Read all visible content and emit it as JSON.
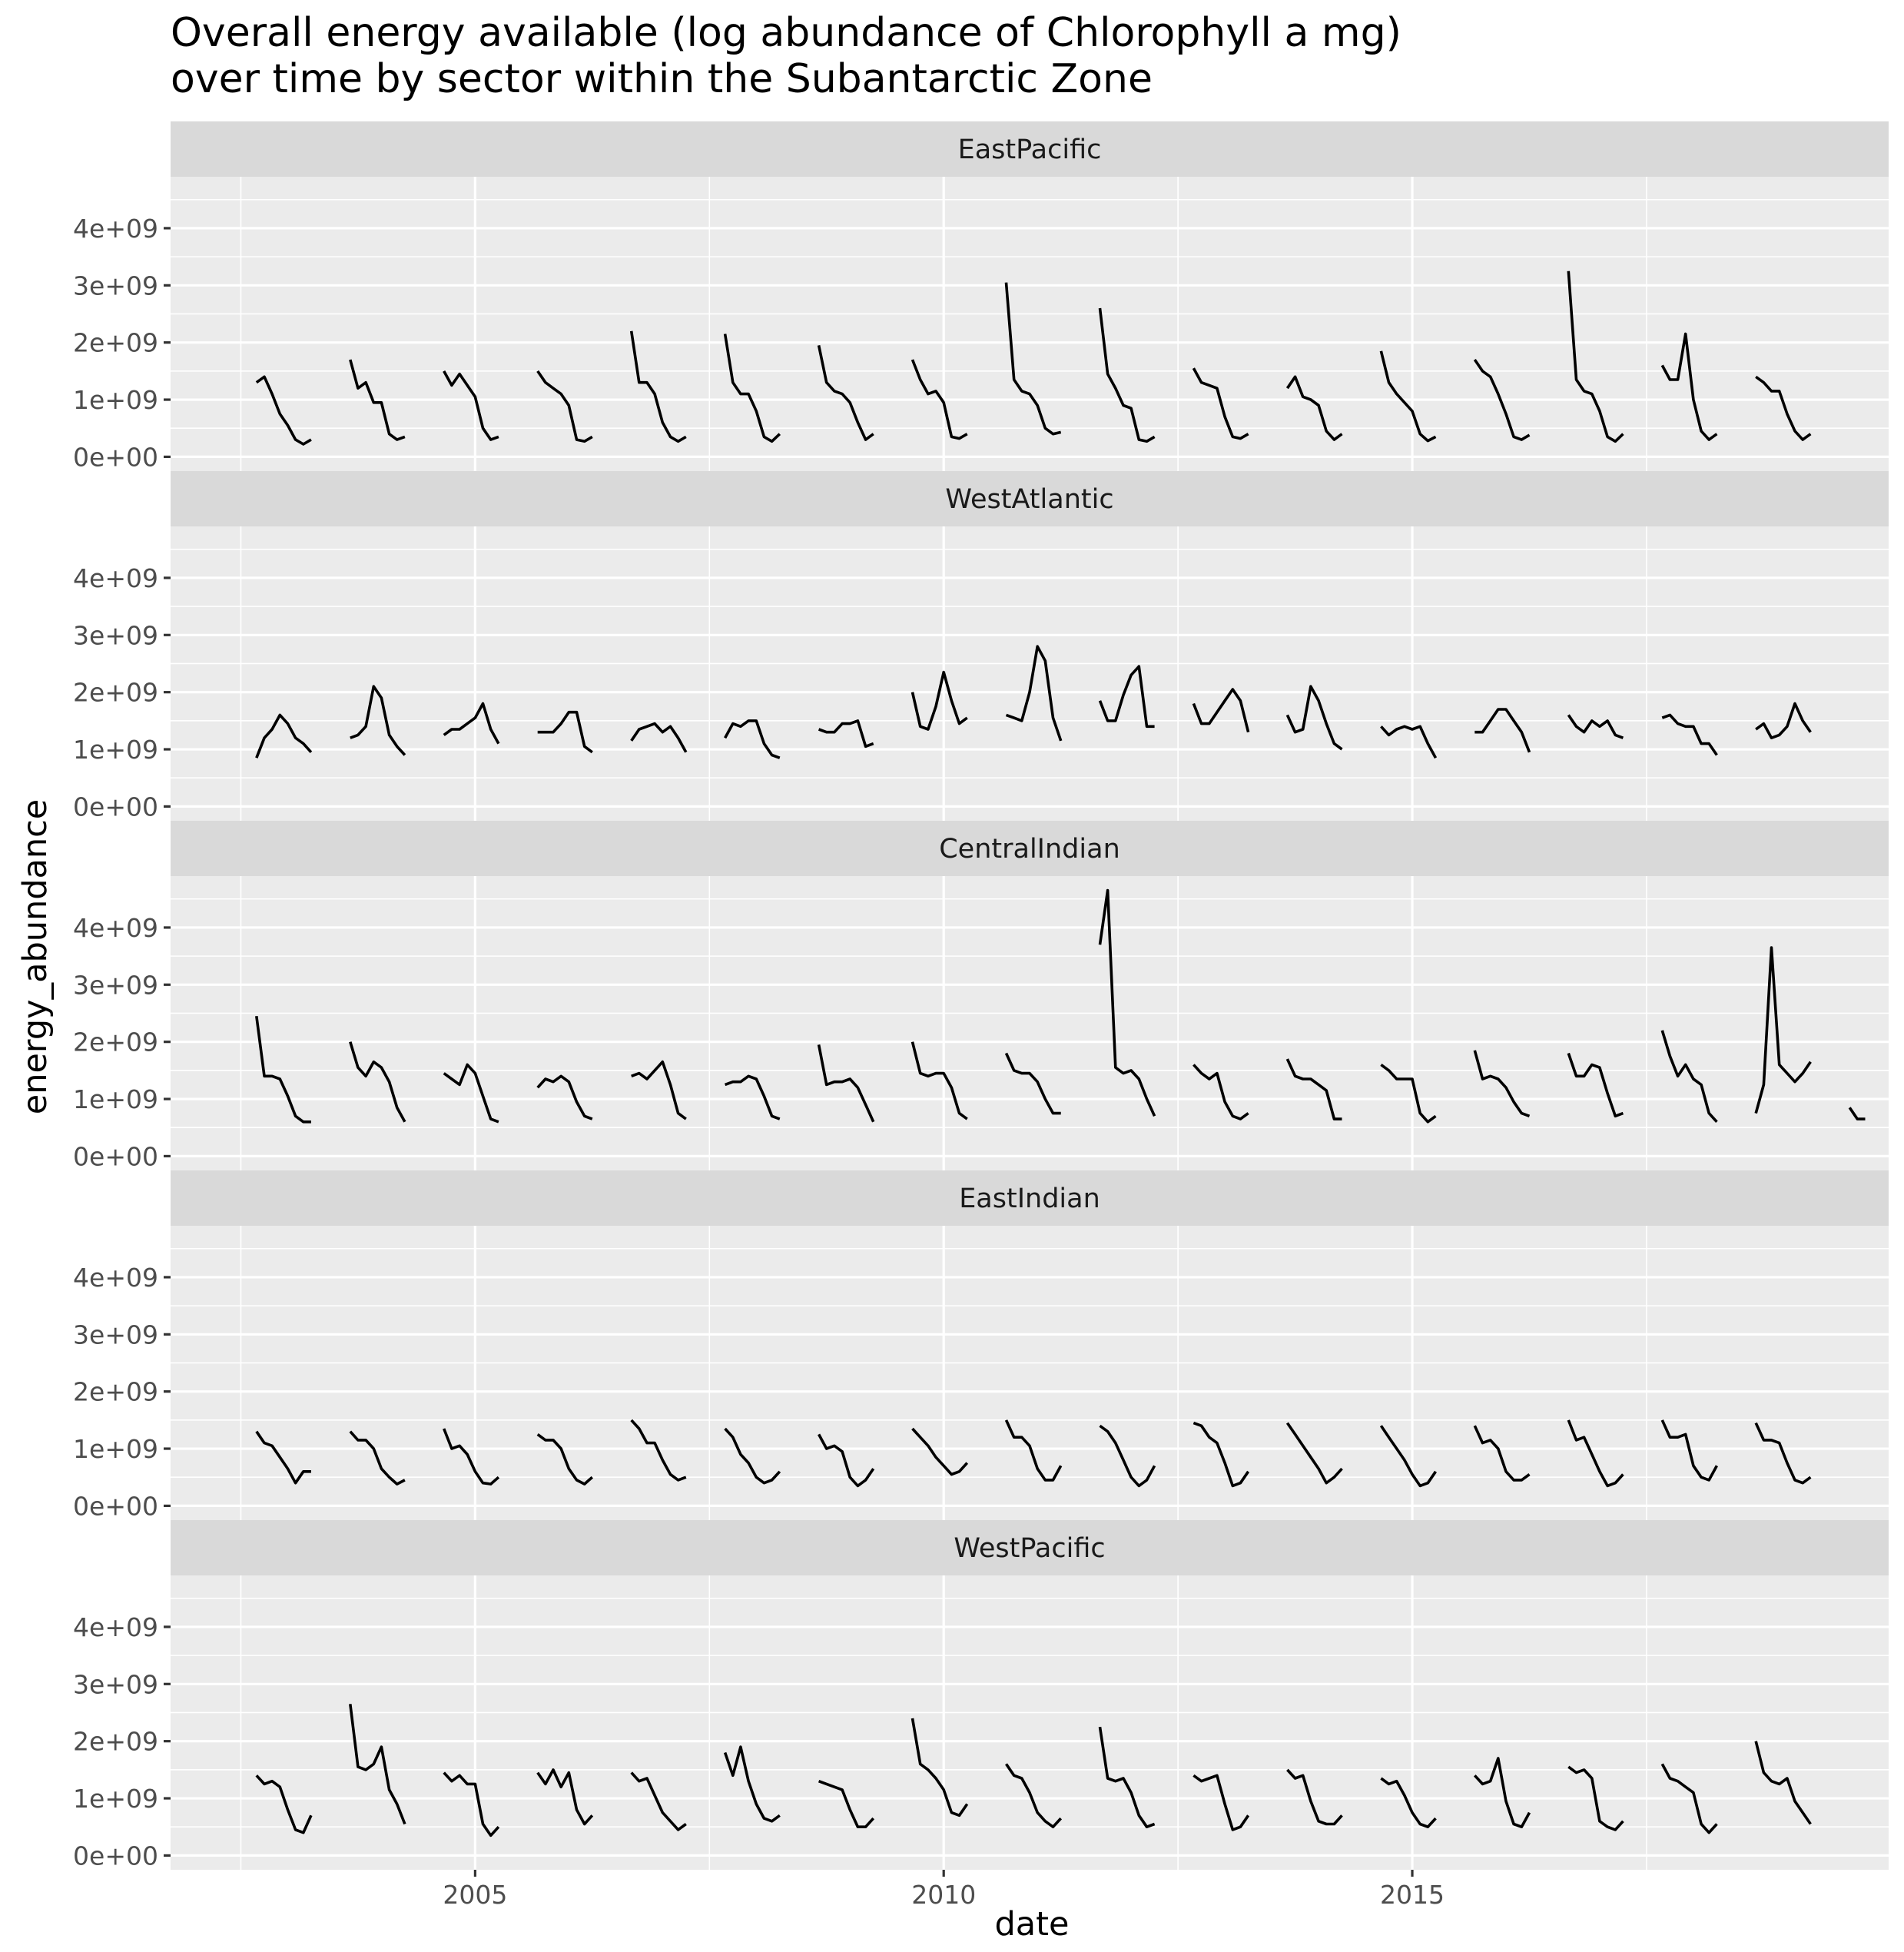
{
  "chart_data": {
    "type": "line",
    "title_lines": [
      " Overall energy available (log abundance of Chlorophyll a mg)",
      "over time by sector within the Subantarctic Zone"
    ],
    "xlabel": "date",
    "ylabel": "energy_abundance",
    "x_ticks": [
      "2005",
      "2010",
      "2015"
    ],
    "x_range": [
      "2001-10-01",
      "2020-02-01"
    ],
    "y_ticks": [
      "0e+00",
      "1e+09",
      "2e+09",
      "3e+09",
      "4e+09"
    ],
    "y_tick_values": [
      0,
      1000000000,
      2000000000,
      3000000000,
      4000000000
    ],
    "ylim": [
      -250000000,
      4900000000
    ],
    "season_months": [
      "Sep",
      "Oct",
      "Nov",
      "Dec",
      "Jan",
      "Feb",
      "Mar",
      "Apr"
    ],
    "seasons_start_year": 2002,
    "grid": true,
    "facets": [
      {
        "label": "EastPacific",
        "seasons_e9": [
          [
            1.3,
            1.4,
            1.1,
            0.75,
            0.55,
            0.3,
            0.22,
            0.3,
            0.5
          ],
          [
            1.7,
            1.2,
            1.3,
            0.95,
            0.95,
            0.4,
            0.3,
            0.35,
            0.5
          ],
          [
            1.5,
            1.25,
            1.45,
            1.25,
            1.05,
            0.5,
            0.3,
            0.35,
            0.6
          ],
          [
            1.5,
            1.3,
            1.2,
            1.1,
            0.9,
            0.3,
            0.27,
            0.35,
            0.55
          ],
          [
            2.2,
            1.3,
            1.3,
            1.1,
            0.6,
            0.35,
            0.27,
            0.35,
            0.6
          ],
          [
            2.15,
            1.3,
            1.1,
            1.1,
            0.8,
            0.35,
            0.27,
            0.4,
            0.55
          ],
          [
            1.95,
            1.3,
            1.15,
            1.1,
            0.95,
            0.6,
            0.3,
            0.4,
            0.62
          ],
          [
            1.7,
            1.35,
            1.1,
            1.15,
            0.95,
            0.35,
            0.32,
            0.4,
            0.75
          ],
          [
            3.05,
            1.35,
            1.15,
            1.1,
            0.9,
            0.5,
            0.4,
            0.43,
            0.45
          ],
          [
            2.6,
            1.45,
            1.2,
            0.9,
            0.85,
            0.3,
            0.27,
            0.35,
            0.6
          ],
          [
            1.55,
            1.3,
            1.25,
            1.2,
            0.7,
            0.35,
            0.32,
            0.4,
            0.68
          ],
          [
            1.2,
            1.4,
            1.05,
            1.0,
            0.9,
            0.45,
            0.3,
            0.4,
            0.75
          ],
          [
            1.85,
            1.3,
            1.1,
            0.95,
            0.8,
            0.4,
            0.28,
            0.35,
            0.45
          ],
          [
            1.7,
            1.5,
            1.4,
            1.1,
            0.75,
            0.35,
            0.3,
            0.38,
            0.6
          ],
          [
            3.25,
            1.35,
            1.15,
            1.1,
            0.8,
            0.35,
            0.27,
            0.4,
            0.68
          ],
          [
            1.6,
            1.35,
            1.35,
            2.15,
            1.0,
            0.45,
            0.3,
            0.4,
            0.52
          ],
          [
            1.4,
            1.3,
            1.15,
            1.15,
            0.75,
            0.45,
            0.3,
            0.4,
            null
          ]
        ]
      },
      {
        "label": "WestAtlantic",
        "seasons_e9": [
          [
            0.85,
            1.2,
            1.35,
            1.6,
            1.45,
            1.2,
            1.1,
            0.95,
            0.8
          ],
          [
            1.2,
            1.25,
            1.4,
            2.1,
            1.9,
            1.25,
            1.05,
            0.9,
            1.05
          ],
          [
            1.25,
            1.35,
            1.35,
            1.45,
            1.55,
            1.8,
            1.35,
            1.1,
            1.05
          ],
          [
            1.3,
            1.3,
            1.3,
            1.45,
            1.65,
            1.65,
            1.05,
            0.95,
            1.05
          ],
          [
            1.15,
            1.35,
            1.4,
            1.45,
            1.3,
            1.4,
            1.2,
            0.95,
            1.0
          ],
          [
            1.2,
            1.45,
            1.4,
            1.5,
            1.5,
            1.1,
            0.9,
            0.85,
            1.15
          ],
          [
            1.35,
            1.3,
            1.3,
            1.45,
            1.45,
            1.5,
            1.05,
            1.1,
            1.6
          ],
          [
            2.0,
            1.4,
            1.35,
            1.75,
            2.35,
            1.85,
            1.45,
            1.55,
            1.6
          ],
          [
            1.6,
            1.55,
            1.5,
            2.0,
            2.8,
            2.55,
            1.55,
            1.15,
            1.7
          ],
          [
            1.85,
            1.5,
            1.5,
            1.95,
            2.3,
            2.45,
            1.4,
            1.4,
            1.15
          ],
          [
            1.8,
            1.45,
            1.45,
            1.65,
            1.85,
            2.05,
            1.85,
            1.3,
            1.15
          ],
          [
            1.6,
            1.3,
            1.35,
            2.1,
            1.85,
            1.45,
            1.1,
            1.0,
            0.95
          ],
          [
            1.4,
            1.25,
            1.35,
            1.4,
            1.35,
            1.4,
            1.1,
            0.85,
            1.2
          ],
          [
            1.3,
            1.3,
            1.5,
            1.7,
            1.7,
            1.5,
            1.3,
            0.95,
            1.15
          ],
          [
            1.6,
            1.4,
            1.3,
            1.5,
            1.4,
            1.5,
            1.25,
            1.2,
            1.2
          ],
          [
            1.55,
            1.6,
            1.45,
            1.4,
            1.4,
            1.1,
            1.1,
            0.9,
            1.3
          ],
          [
            1.35,
            1.45,
            1.2,
            1.25,
            1.4,
            1.8,
            1.5,
            1.3,
            null
          ]
        ]
      },
      {
        "label": "CentralIndian",
        "seasons_e9": [
          [
            2.45,
            1.4,
            1.4,
            1.35,
            1.05,
            0.7,
            0.6,
            0.6,
            0.95
          ],
          [
            2.0,
            1.55,
            1.4,
            1.65,
            1.55,
            1.3,
            0.85,
            0.6,
            1.1
          ],
          [
            1.45,
            1.35,
            1.25,
            1.6,
            1.45,
            1.05,
            0.65,
            0.6,
            1.0
          ],
          [
            1.2,
            1.35,
            1.3,
            1.4,
            1.3,
            0.95,
            0.7,
            0.65,
            1.15
          ],
          [
            1.4,
            1.45,
            1.35,
            1.5,
            1.65,
            1.25,
            0.75,
            0.65,
            0.95
          ],
          [
            1.25,
            1.3,
            1.3,
            1.4,
            1.35,
            1.05,
            0.7,
            0.65,
            0.85
          ],
          [
            1.95,
            1.25,
            1.3,
            1.3,
            1.35,
            1.2,
            0.9,
            0.6,
            0.95
          ],
          [
            2.0,
            1.45,
            1.4,
            1.45,
            1.45,
            1.2,
            0.75,
            0.65,
            1.25
          ],
          [
            1.8,
            1.5,
            1.45,
            1.45,
            1.3,
            1.0,
            0.75,
            0.75,
            1.2
          ],
          [
            3.7,
            4.65,
            1.55,
            1.45,
            1.5,
            1.35,
            1.0,
            0.7,
            1.1
          ],
          [
            1.6,
            1.45,
            1.35,
            1.45,
            0.95,
            0.7,
            0.65,
            0.75,
            1.05
          ],
          [
            1.7,
            1.4,
            1.35,
            1.35,
            1.25,
            1.15,
            0.65,
            0.65,
            0.95
          ],
          [
            1.6,
            1.5,
            1.35,
            1.35,
            1.35,
            0.75,
            0.6,
            0.7,
            1.05
          ],
          [
            1.85,
            1.35,
            1.4,
            1.35,
            1.2,
            0.95,
            0.75,
            0.7,
            1.15
          ],
          [
            1.8,
            1.4,
            1.4,
            1.6,
            1.55,
            1.1,
            0.7,
            0.75,
            1.25
          ],
          [
            2.2,
            1.75,
            1.4,
            1.6,
            1.35,
            1.25,
            0.75,
            0.6,
            0.65
          ],
          [
            0.75,
            1.25,
            3.65,
            1.6,
            1.45,
            1.3,
            1.45,
            1.65,
            1.45
          ],
          [
            0.85,
            0.65,
            0.65,
            null,
            null,
            null,
            null,
            null,
            null
          ]
        ]
      },
      {
        "label": "EastIndian",
        "seasons_e9": [
          [
            1.3,
            1.1,
            1.05,
            0.85,
            0.65,
            0.4,
            0.6,
            0.6,
            1.1
          ],
          [
            1.3,
            1.15,
            1.15,
            1.0,
            0.65,
            0.5,
            0.38,
            0.45,
            1.1
          ],
          [
            1.35,
            1.0,
            1.05,
            0.9,
            0.6,
            0.4,
            0.38,
            0.5,
            0.7
          ],
          [
            1.25,
            1.15,
            1.15,
            1.0,
            0.65,
            0.45,
            0.38,
            0.5,
            0.75
          ],
          [
            1.5,
            1.35,
            1.1,
            1.1,
            0.8,
            0.55,
            0.45,
            0.5,
            1.15
          ],
          [
            1.35,
            1.2,
            0.9,
            0.75,
            0.5,
            0.4,
            0.45,
            0.6,
            1.05
          ],
          [
            1.25,
            1.0,
            1.05,
            0.95,
            0.5,
            0.35,
            0.45,
            0.65,
            1.7
          ],
          [
            1.35,
            1.2,
            1.05,
            0.85,
            0.7,
            0.55,
            0.6,
            0.75,
            0.8
          ],
          [
            1.5,
            1.2,
            1.2,
            1.05,
            0.65,
            0.45,
            0.45,
            0.7,
            1.25
          ],
          [
            1.4,
            1.3,
            1.1,
            0.8,
            0.5,
            0.35,
            0.45,
            0.7,
            1.45
          ],
          [
            1.45,
            1.4,
            1.2,
            1.1,
            0.75,
            0.35,
            0.4,
            0.6,
            0.9
          ],
          [
            1.45,
            1.25,
            1.05,
            0.85,
            0.65,
            0.4,
            0.5,
            0.65,
            1.7
          ],
          [
            1.4,
            1.2,
            1.0,
            0.8,
            0.55,
            0.35,
            0.4,
            0.6,
            0.9
          ],
          [
            1.4,
            1.1,
            1.15,
            1.0,
            0.6,
            0.45,
            0.45,
            0.55,
            0.7
          ],
          [
            1.5,
            1.15,
            1.2,
            0.9,
            0.6,
            0.35,
            0.4,
            0.55,
            1.1
          ],
          [
            1.5,
            1.2,
            1.2,
            1.25,
            0.7,
            0.5,
            0.45,
            0.7,
            1.35
          ],
          [
            1.45,
            1.15,
            1.15,
            1.1,
            0.75,
            0.45,
            0.4,
            0.5,
            null
          ]
        ]
      },
      {
        "label": "WestPacific",
        "seasons_e9": [
          [
            1.4,
            1.25,
            1.3,
            1.2,
            0.8,
            0.45,
            0.4,
            0.7,
            0.6
          ],
          [
            2.65,
            1.55,
            1.5,
            1.6,
            1.9,
            1.15,
            0.9,
            0.55,
            0.8
          ],
          [
            1.45,
            1.3,
            1.4,
            1.25,
            1.25,
            0.55,
            0.35,
            0.5,
            0.75
          ],
          [
            1.45,
            1.25,
            1.5,
            1.2,
            1.45,
            0.8,
            0.55,
            0.7,
            1.25
          ],
          [
            1.45,
            1.3,
            1.35,
            1.05,
            0.75,
            0.6,
            0.45,
            0.55,
            0.85
          ],
          [
            1.8,
            1.4,
            1.9,
            1.3,
            0.9,
            0.65,
            0.6,
            0.7,
            1.2
          ],
          [
            1.3,
            1.25,
            1.2,
            1.15,
            0.8,
            0.5,
            0.5,
            0.65,
            0.9
          ],
          [
            2.4,
            1.6,
            1.5,
            1.35,
            1.15,
            0.75,
            0.7,
            0.9,
            0.85
          ],
          [
            1.6,
            1.4,
            1.35,
            1.1,
            0.75,
            0.6,
            0.5,
            0.65,
            0.8
          ],
          [
            2.25,
            1.35,
            1.3,
            1.35,
            1.1,
            0.7,
            0.5,
            0.55,
            0.75
          ],
          [
            1.4,
            1.3,
            1.35,
            1.4,
            0.9,
            0.45,
            0.5,
            0.7,
            0.9
          ],
          [
            1.5,
            1.35,
            1.4,
            0.95,
            0.6,
            0.55,
            0.55,
            0.7,
            0.85
          ],
          [
            1.35,
            1.25,
            1.3,
            1.05,
            0.75,
            0.55,
            0.5,
            0.65,
            0.8
          ],
          [
            1.4,
            1.25,
            1.3,
            1.7,
            0.95,
            0.55,
            0.5,
            0.75,
            1.1
          ],
          [
            1.55,
            1.45,
            1.5,
            1.35,
            0.6,
            0.5,
            0.45,
            0.6,
            0.8
          ],
          [
            1.6,
            1.35,
            1.3,
            1.2,
            1.1,
            0.55,
            0.4,
            0.55,
            0.8
          ],
          [
            2.0,
            1.45,
            1.3,
            1.25,
            1.35,
            0.95,
            0.75,
            0.55,
            0.7
          ]
        ]
      }
    ]
  }
}
